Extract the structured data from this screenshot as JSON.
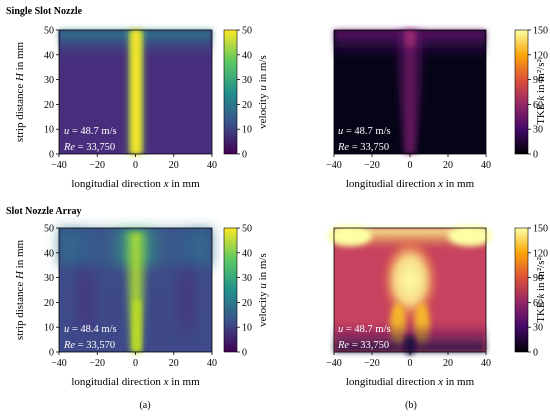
{
  "sections": [
    {
      "title": "Single Slot Nozzle"
    },
    {
      "title": "Slot Nozzle Array"
    }
  ],
  "panel_labels": [
    "(a)",
    "(b)"
  ],
  "chart_data": [
    {
      "type": "heatmap",
      "nozzle": "single",
      "quantity": "velocity",
      "xlabel": "longitudial direction x in mm",
      "ylabel": "strip distance H in mm",
      "xlim": [
        -40,
        40
      ],
      "ylim": [
        0,
        50
      ],
      "xticks": [
        "−40",
        "−20",
        "0",
        "20",
        "40"
      ],
      "yticks": [
        "0",
        "10",
        "20",
        "30",
        "40",
        "50"
      ],
      "colorbar": {
        "label": "velocity u in m/s",
        "range": [
          0,
          50
        ],
        "ticks": [
          "0",
          "10",
          "20",
          "30",
          "40",
          "50"
        ],
        "colormap": "viridis"
      },
      "annotations": [
        "u = 48.7 m/s",
        "Re = 33,750"
      ]
    },
    {
      "type": "heatmap",
      "nozzle": "single",
      "quantity": "tke",
      "xlabel": "longitudial direction x in mm",
      "ylabel": "",
      "xlim": [
        -40,
        40
      ],
      "ylim": [
        0,
        50
      ],
      "xticks": [
        "−40",
        "−20",
        "0",
        "20",
        "40"
      ],
      "yticks": [],
      "colorbar": {
        "label": "TKE k in m²/s²",
        "range": [
          0,
          150
        ],
        "ticks": [
          "0",
          "30",
          "60",
          "90",
          "120",
          "150"
        ],
        "colormap": "inferno"
      },
      "annotations": [
        "u = 48.7 m/s",
        "Re = 33,750"
      ]
    },
    {
      "type": "heatmap",
      "nozzle": "array",
      "quantity": "velocity",
      "xlabel": "longitudial direction x in mm",
      "ylabel": "strip distance H in mm",
      "xlim": [
        -40,
        40
      ],
      "ylim": [
        0,
        50
      ],
      "xticks": [
        "−40",
        "−20",
        "0",
        "20",
        "40"
      ],
      "yticks": [
        "0",
        "10",
        "20",
        "30",
        "40",
        "50"
      ],
      "colorbar": {
        "label": "velocity u in m/s",
        "range": [
          0,
          50
        ],
        "ticks": [
          "0",
          "10",
          "20",
          "30",
          "40",
          "50"
        ],
        "colormap": "viridis"
      },
      "annotations": [
        "u = 48.4 m/s",
        "Re = 33,570"
      ]
    },
    {
      "type": "heatmap",
      "nozzle": "array",
      "quantity": "tke",
      "xlabel": "longitudial direction x in mm",
      "ylabel": "",
      "xlim": [
        -40,
        40
      ],
      "ylim": [
        0,
        50
      ],
      "xticks": [
        "−40",
        "−20",
        "0",
        "20",
        "40"
      ],
      "yticks": [],
      "colorbar": {
        "label": "TKE k in m²/s²",
        "range": [
          0,
          150
        ],
        "ticks": [
          "0",
          "30",
          "60",
          "90",
          "120",
          "150"
        ],
        "colormap": "inferno"
      },
      "annotations": [
        "u = 48.7 m/s",
        "Re = 33,750"
      ]
    }
  ]
}
